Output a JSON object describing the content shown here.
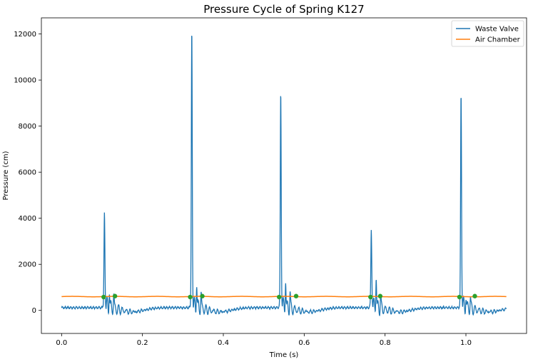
{
  "chart_data": {
    "type": "line",
    "title": "Pressure Cycle of Spring K127",
    "xlabel": "Time (s)",
    "ylabel": "Pressure (cm)",
    "xlim": [
      -0.05,
      1.15
    ],
    "ylim": [
      -1000,
      12700
    ],
    "xticks": [
      0.0,
      0.2,
      0.4,
      0.6,
      0.8,
      1.0
    ],
    "xtick_labels": [
      "0.0",
      "0.2",
      "0.4",
      "0.6",
      "0.8",
      "1.0"
    ],
    "yticks": [
      0,
      2000,
      4000,
      6000,
      8000,
      10000,
      12000
    ],
    "ytick_labels": [
      "0",
      "2000",
      "4000",
      "6000",
      "8000",
      "10000",
      "12000"
    ],
    "grid": false,
    "legend": {
      "position": "top-right"
    },
    "series": [
      {
        "name": "Waste Valve",
        "color": "#1f77b4",
        "baseline": 120,
        "pulses": [
          {
            "t": 0.106,
            "peak": 4100,
            "secondary": 1200,
            "tertiary": 950
          },
          {
            "t": 0.322,
            "peak": 12050,
            "secondary": 1550,
            "tertiary": 1000
          },
          {
            "t": 0.542,
            "peak": 9400,
            "secondary": 1650,
            "tertiary": 1050
          },
          {
            "t": 0.766,
            "peak": 3400,
            "secondary": 1850,
            "tertiary": 900
          },
          {
            "t": 0.988,
            "peak": 9330,
            "secondary": 900,
            "tertiary": 800
          }
        ],
        "x_range": [
          0.0,
          1.1
        ]
      },
      {
        "name": "Air Chamber",
        "color": "#ff7f0e",
        "value": 600,
        "x_range": [
          0.0,
          1.1
        ]
      }
    ],
    "markers": {
      "color": "#2ca02c",
      "points": [
        {
          "x": 0.104,
          "y": 580
        },
        {
          "x": 0.132,
          "y": 620
        },
        {
          "x": 0.318,
          "y": 580
        },
        {
          "x": 0.348,
          "y": 620
        },
        {
          "x": 0.538,
          "y": 580
        },
        {
          "x": 0.58,
          "y": 620
        },
        {
          "x": 0.764,
          "y": 580
        },
        {
          "x": 0.788,
          "y": 620
        },
        {
          "x": 0.984,
          "y": 580
        },
        {
          "x": 1.022,
          "y": 620
        }
      ]
    }
  }
}
